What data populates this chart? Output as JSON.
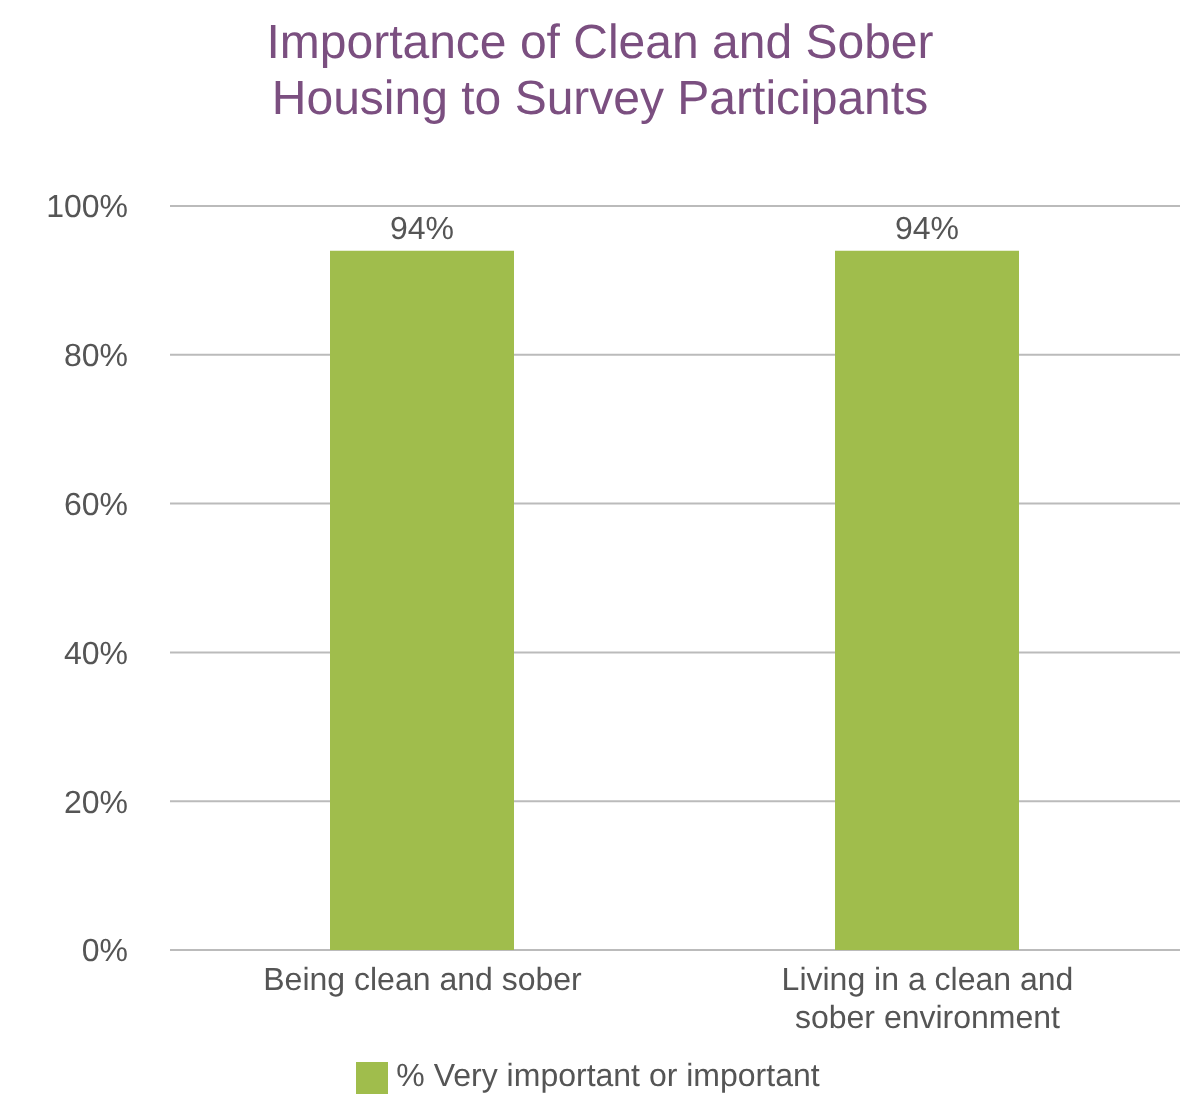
{
  "chart_data": {
    "type": "bar",
    "title": "Importance of Clean and Sober Housing to Survey Participants",
    "categories": [
      "Being clean and sober",
      "Living in a clean and sober environment"
    ],
    "series": [
      {
        "name": "% Very important or important",
        "color": "#a0bd4c",
        "values": [
          94,
          94
        ],
        "value_labels": [
          "94%",
          "94%"
        ]
      }
    ],
    "ylim": [
      0,
      100
    ],
    "yticks": [
      {
        "value": 0,
        "label": "0%"
      },
      {
        "value": 20,
        "label": "20%"
      },
      {
        "value": 40,
        "label": "40%"
      },
      {
        "value": 60,
        "label": "60%"
      },
      {
        "value": 80,
        "label": "80%"
      },
      {
        "value": 100,
        "label": "100%"
      }
    ],
    "grid": "y",
    "legend": "bottom"
  }
}
